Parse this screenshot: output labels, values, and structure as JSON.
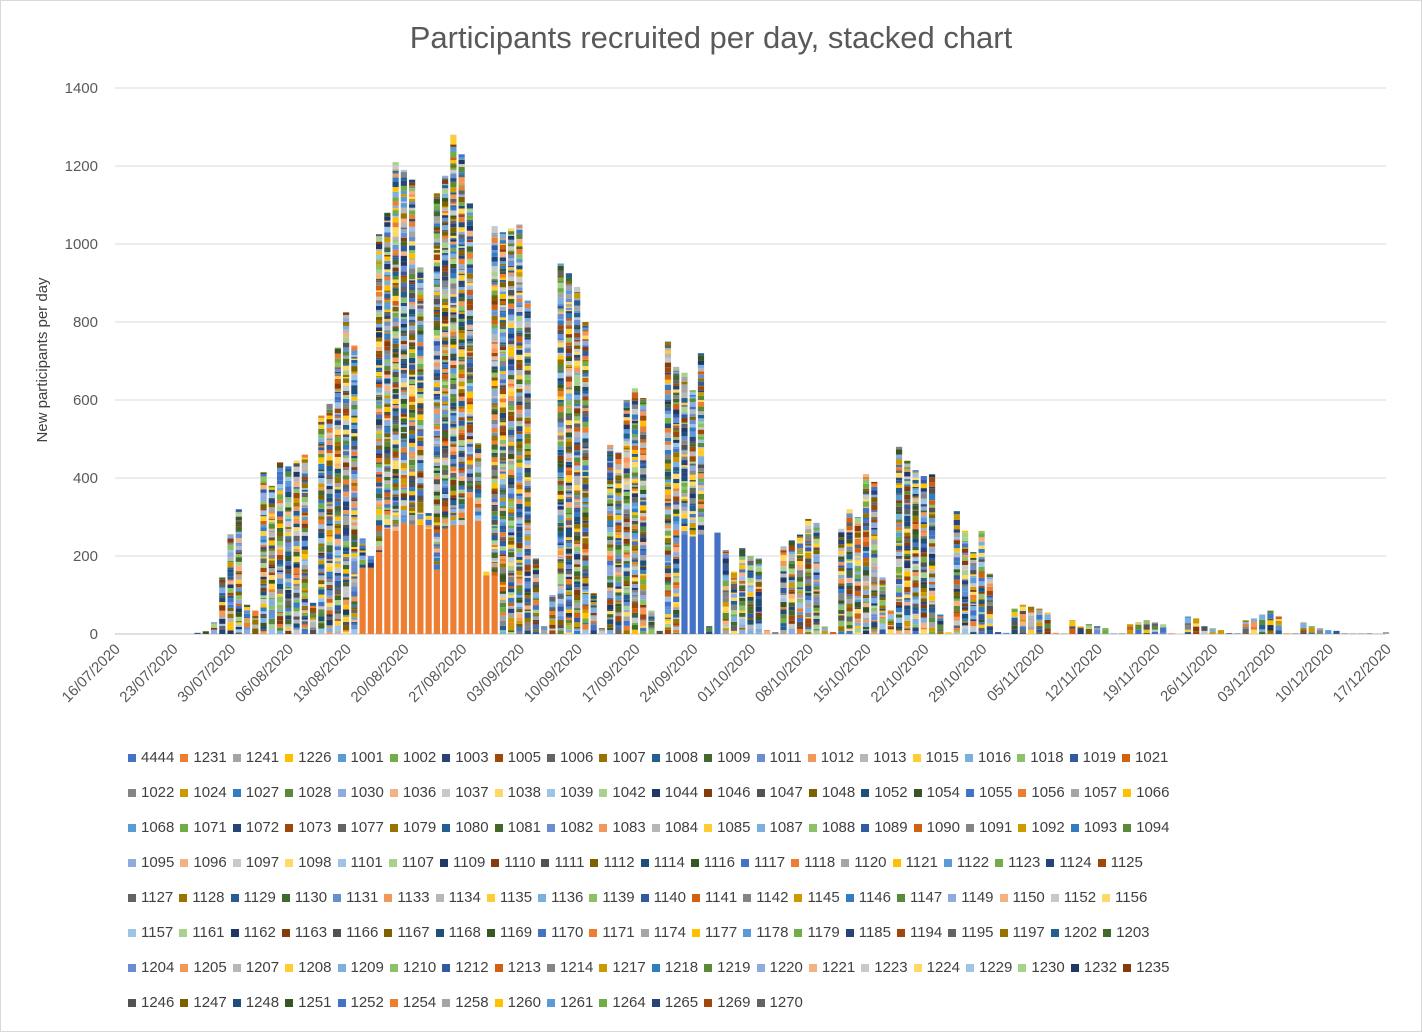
{
  "chart_data": {
    "type": "bar",
    "stacked": true,
    "title": "Participants recruited per day, stacked chart",
    "ylabel": "New participants per day",
    "xlabel": "",
    "ylim": [
      0,
      1400
    ],
    "yticks": [
      0,
      200,
      400,
      600,
      800,
      1000,
      1200,
      1400
    ],
    "x_tick_labels": [
      "16/07/2020",
      "23/07/2020",
      "30/07/2020",
      "06/08/2020",
      "13/08/2020",
      "20/08/2020",
      "27/08/2020",
      "03/09/2020",
      "10/09/2020",
      "17/09/2020",
      "24/09/2020",
      "01/10/2020",
      "08/10/2020",
      "15/10/2020",
      "22/10/2020",
      "29/10/2020",
      "05/11/2020",
      "12/11/2020",
      "19/11/2020",
      "26/11/2020",
      "03/12/2020",
      "10/12/2020",
      "17/12/2020"
    ],
    "x_start": "16/07/2020",
    "grid": true,
    "legend_position": "bottom",
    "daily_totals": [
      {
        "date": "26/07/2020",
        "total": 3
      },
      {
        "date": "27/07/2020",
        "total": 7
      },
      {
        "date": "28/07/2020",
        "total": 30
      },
      {
        "date": "29/07/2020",
        "total": 145
      },
      {
        "date": "30/07/2020",
        "total": 255
      },
      {
        "date": "31/07/2020",
        "total": 320
      },
      {
        "date": "01/08/2020",
        "total": 75
      },
      {
        "date": "02/08/2020",
        "total": 60
      },
      {
        "date": "03/08/2020",
        "total": 415
      },
      {
        "date": "04/08/2020",
        "total": 380
      },
      {
        "date": "05/08/2020",
        "total": 440
      },
      {
        "date": "06/08/2020",
        "total": 430
      },
      {
        "date": "07/08/2020",
        "total": 445
      },
      {
        "date": "08/08/2020",
        "total": 460
      },
      {
        "date": "09/08/2020",
        "total": 80
      },
      {
        "date": "10/08/2020",
        "total": 560
      },
      {
        "date": "11/08/2020",
        "total": 590
      },
      {
        "date": "12/08/2020",
        "total": 735
      },
      {
        "date": "13/08/2020",
        "total": 825
      },
      {
        "date": "14/08/2020",
        "total": 740
      },
      {
        "date": "15/08/2020",
        "total": 245
      },
      {
        "date": "16/08/2020",
        "total": 200
      },
      {
        "date": "17/08/2020",
        "total": 1025
      },
      {
        "date": "18/08/2020",
        "total": 1080
      },
      {
        "date": "19/08/2020",
        "total": 1210
      },
      {
        "date": "20/08/2020",
        "total": 1190
      },
      {
        "date": "21/08/2020",
        "total": 1165
      },
      {
        "date": "22/08/2020",
        "total": 940
      },
      {
        "date": "23/08/2020",
        "total": 310
      },
      {
        "date": "24/08/2020",
        "total": 1130
      },
      {
        "date": "25/08/2020",
        "total": 1175
      },
      {
        "date": "26/08/2020",
        "total": 1280
      },
      {
        "date": "27/08/2020",
        "total": 1230
      },
      {
        "date": "28/08/2020",
        "total": 1105
      },
      {
        "date": "29/08/2020",
        "total": 490
      },
      {
        "date": "30/08/2020",
        "total": 160
      },
      {
        "date": "31/08/2020",
        "total": 1045
      },
      {
        "date": "01/09/2020",
        "total": 1030
      },
      {
        "date": "02/09/2020",
        "total": 1040
      },
      {
        "date": "03/09/2020",
        "total": 1050
      },
      {
        "date": "04/09/2020",
        "total": 855
      },
      {
        "date": "05/09/2020",
        "total": 195
      },
      {
        "date": "06/09/2020",
        "total": 20
      },
      {
        "date": "07/09/2020",
        "total": 100
      },
      {
        "date": "08/09/2020",
        "total": 950
      },
      {
        "date": "09/09/2020",
        "total": 925
      },
      {
        "date": "10/09/2020",
        "total": 890
      },
      {
        "date": "11/09/2020",
        "total": 800
      },
      {
        "date": "12/09/2020",
        "total": 105
      },
      {
        "date": "13/09/2020",
        "total": 15
      },
      {
        "date": "14/09/2020",
        "total": 485
      },
      {
        "date": "15/09/2020",
        "total": 465
      },
      {
        "date": "16/09/2020",
        "total": 600
      },
      {
        "date": "17/09/2020",
        "total": 630
      },
      {
        "date": "18/09/2020",
        "total": 605
      },
      {
        "date": "19/09/2020",
        "total": 60
      },
      {
        "date": "20/09/2020",
        "total": 8
      },
      {
        "date": "21/09/2020",
        "total": 750
      },
      {
        "date": "22/09/2020",
        "total": 685
      },
      {
        "date": "23/09/2020",
        "total": 670
      },
      {
        "date": "24/09/2020",
        "total": 625
      },
      {
        "date": "25/09/2020",
        "total": 720
      },
      {
        "date": "26/09/2020",
        "total": 20
      },
      {
        "date": "27/09/2020",
        "total": 260
      },
      {
        "date": "28/09/2020",
        "total": 215
      },
      {
        "date": "29/09/2020",
        "total": 160
      },
      {
        "date": "30/09/2020",
        "total": 220
      },
      {
        "date": "01/10/2020",
        "total": 200
      },
      {
        "date": "02/10/2020",
        "total": 195
      },
      {
        "date": "03/10/2020",
        "total": 10
      },
      {
        "date": "04/10/2020",
        "total": 5
      },
      {
        "date": "05/10/2020",
        "total": 225
      },
      {
        "date": "06/10/2020",
        "total": 240
      },
      {
        "date": "07/10/2020",
        "total": 255
      },
      {
        "date": "08/10/2020",
        "total": 295
      },
      {
        "date": "09/10/2020",
        "total": 285
      },
      {
        "date": "10/10/2020",
        "total": 20
      },
      {
        "date": "11/10/2020",
        "total": 5
      },
      {
        "date": "12/10/2020",
        "total": 270
      },
      {
        "date": "13/10/2020",
        "total": 320
      },
      {
        "date": "14/10/2020",
        "total": 300
      },
      {
        "date": "15/10/2020",
        "total": 410
      },
      {
        "date": "16/10/2020",
        "total": 390
      },
      {
        "date": "17/10/2020",
        "total": 145
      },
      {
        "date": "18/10/2020",
        "total": 60
      },
      {
        "date": "19/10/2020",
        "total": 480
      },
      {
        "date": "20/10/2020",
        "total": 445
      },
      {
        "date": "21/10/2020",
        "total": 420
      },
      {
        "date": "22/10/2020",
        "total": 405
      },
      {
        "date": "23/10/2020",
        "total": 410
      },
      {
        "date": "24/10/2020",
        "total": 50
      },
      {
        "date": "25/10/2020",
        "total": 5
      },
      {
        "date": "26/10/2020",
        "total": 315
      },
      {
        "date": "27/10/2020",
        "total": 265
      },
      {
        "date": "28/10/2020",
        "total": 210
      },
      {
        "date": "29/10/2020",
        "total": 265
      },
      {
        "date": "30/10/2020",
        "total": 155
      },
      {
        "date": "31/10/2020",
        "total": 5
      },
      {
        "date": "01/11/2020",
        "total": 3
      },
      {
        "date": "02/11/2020",
        "total": 65
      },
      {
        "date": "03/11/2020",
        "total": 75
      },
      {
        "date": "04/11/2020",
        "total": 70
      },
      {
        "date": "05/11/2020",
        "total": 65
      },
      {
        "date": "06/11/2020",
        "total": 55
      },
      {
        "date": "07/11/2020",
        "total": 3
      },
      {
        "date": "08/11/2020",
        "total": 2
      },
      {
        "date": "09/11/2020",
        "total": 35
      },
      {
        "date": "10/11/2020",
        "total": 20
      },
      {
        "date": "11/11/2020",
        "total": 25
      },
      {
        "date": "12/11/2020",
        "total": 20
      },
      {
        "date": "13/11/2020",
        "total": 15
      },
      {
        "date": "14/11/2020",
        "total": 2
      },
      {
        "date": "15/11/2020",
        "total": 1
      },
      {
        "date": "16/11/2020",
        "total": 25
      },
      {
        "date": "17/11/2020",
        "total": 30
      },
      {
        "date": "18/11/2020",
        "total": 35
      },
      {
        "date": "19/11/2020",
        "total": 30
      },
      {
        "date": "20/11/2020",
        "total": 25
      },
      {
        "date": "21/11/2020",
        "total": 2
      },
      {
        "date": "22/11/2020",
        "total": 1
      },
      {
        "date": "23/11/2020",
        "total": 45
      },
      {
        "date": "24/11/2020",
        "total": 40
      },
      {
        "date": "25/11/2020",
        "total": 20
      },
      {
        "date": "26/11/2020",
        "total": 15
      },
      {
        "date": "27/11/2020",
        "total": 10
      },
      {
        "date": "28/11/2020",
        "total": 2
      },
      {
        "date": "29/11/2020",
        "total": 1
      },
      {
        "date": "30/11/2020",
        "total": 35
      },
      {
        "date": "01/12/2020",
        "total": 40
      },
      {
        "date": "02/12/2020",
        "total": 50
      },
      {
        "date": "03/12/2020",
        "total": 60
      },
      {
        "date": "04/12/2020",
        "total": 45
      },
      {
        "date": "05/12/2020",
        "total": 2
      },
      {
        "date": "06/12/2020",
        "total": 1
      },
      {
        "date": "07/12/2020",
        "total": 30
      },
      {
        "date": "08/12/2020",
        "total": 20
      },
      {
        "date": "09/12/2020",
        "total": 15
      },
      {
        "date": "10/12/2020",
        "total": 10
      },
      {
        "date": "11/12/2020",
        "total": 8
      },
      {
        "date": "12/12/2020",
        "total": 1
      },
      {
        "date": "13/12/2020",
        "total": 1
      },
      {
        "date": "14/12/2020",
        "total": 1
      },
      {
        "date": "15/12/2020",
        "total": 1
      },
      {
        "date": "16/12/2020",
        "total": 1
      },
      {
        "date": "17/12/2020",
        "total": 5
      }
    ],
    "highlight_series": [
      {
        "name": "1231",
        "color": "#ED7D31",
        "values": [
          {
            "date": "15/08/2020",
            "v": 170
          },
          {
            "date": "16/08/2020",
            "v": 170
          },
          {
            "date": "17/08/2020",
            "v": 210
          },
          {
            "date": "18/08/2020",
            "v": 270
          },
          {
            "date": "19/08/2020",
            "v": 265
          },
          {
            "date": "20/08/2020",
            "v": 285
          },
          {
            "date": "21/08/2020",
            "v": 280
          },
          {
            "date": "22/08/2020",
            "v": 280
          },
          {
            "date": "23/08/2020",
            "v": 270
          },
          {
            "date": "24/08/2020",
            "v": 165
          },
          {
            "date": "25/08/2020",
            "v": 270
          },
          {
            "date": "26/08/2020",
            "v": 280
          },
          {
            "date": "27/08/2020",
            "v": 280
          },
          {
            "date": "28/08/2020",
            "v": 350
          },
          {
            "date": "29/08/2020",
            "v": 290
          },
          {
            "date": "30/08/2020",
            "v": 150
          },
          {
            "date": "31/08/2020",
            "v": 150
          }
        ]
      },
      {
        "name": "4444",
        "color": "#4472C4",
        "values": [
          {
            "date": "23/09/2020",
            "v": 255
          },
          {
            "date": "24/09/2020",
            "v": 250
          },
          {
            "date": "25/09/2020",
            "v": 255
          },
          {
            "date": "27/09/2020",
            "v": 260
          }
        ]
      }
    ],
    "legend": {
      "rows": [
        [
          "4444",
          "1231",
          "1241",
          "1226",
          "1001",
          "1002",
          "1003",
          "1005",
          "1006",
          "1007",
          "1008",
          "1009",
          "1011",
          "1012",
          "1013",
          "1015",
          "1016",
          "1018",
          "1019",
          "1021"
        ],
        [
          "1022",
          "1024",
          "1027",
          "1028",
          "1030",
          "1036",
          "1037",
          "1038",
          "1039",
          "1042",
          "1044",
          "1046",
          "1047",
          "1048",
          "1052",
          "1054",
          "1055",
          "1056",
          "1057",
          "1066"
        ],
        [
          "1068",
          "1071",
          "1072",
          "1073",
          "1077",
          "1079",
          "1080",
          "1081",
          "1082",
          "1083",
          "1084",
          "1085",
          "1087",
          "1088",
          "1089",
          "1090",
          "1091",
          "1092",
          "1093",
          "1094"
        ],
        [
          "1095",
          "1096",
          "1097",
          "1098",
          "1101",
          "1107",
          "1109",
          "1110",
          "1111",
          "1112",
          "1114",
          "1116",
          "1117",
          "1118",
          "1120",
          "1121",
          "1122",
          "1123",
          "1124",
          "1125"
        ],
        [
          "1127",
          "1128",
          "1129",
          "1130",
          "1131",
          "1133",
          "1134",
          "1135",
          "1136",
          "1139",
          "1140",
          "1141",
          "1142",
          "1145",
          "1146",
          "1147",
          "1149",
          "1150",
          "1152",
          "1156"
        ],
        [
          "1157",
          "1161",
          "1162",
          "1163",
          "1166",
          "1167",
          "1168",
          "1169",
          "1170",
          "1171",
          "1174",
          "1177",
          "1178",
          "1179",
          "1185",
          "1194",
          "1195",
          "1197",
          "1202",
          "1203"
        ],
        [
          "1204",
          "1205",
          "1207",
          "1208",
          "1209",
          "1210",
          "1212",
          "1213",
          "1214",
          "1217",
          "1218",
          "1219",
          "1220",
          "1221",
          "1223",
          "1224",
          "1229",
          "1230",
          "1232",
          "1235"
        ],
        [
          "1246",
          "1247",
          "1248",
          "1251",
          "1252",
          "1254",
          "1258",
          "1260",
          "1261",
          "1264",
          "1265",
          "1269",
          "1270"
        ]
      ],
      "palette": [
        "#4472C4",
        "#ED7D31",
        "#A5A5A5",
        "#FFC000",
        "#5B9BD5",
        "#70AD47",
        "#264478",
        "#9E480E",
        "#636363",
        "#997300",
        "#255E91",
        "#43682B",
        "#698ED0",
        "#F1975A",
        "#B7B7B7",
        "#FFCD33",
        "#7CAFDD",
        "#8CC168",
        "#335AA1",
        "#D26012",
        "#848484",
        "#CC9A00",
        "#327DC2",
        "#5A8A39",
        "#8FAADC",
        "#F4B183",
        "#C9C9C9",
        "#FFD966",
        "#9DC3E6",
        "#A9D18E",
        "#1F3864",
        "#843C0C",
        "#525252",
        "#7F6000",
        "#1F4E79",
        "#375623"
      ]
    }
  }
}
